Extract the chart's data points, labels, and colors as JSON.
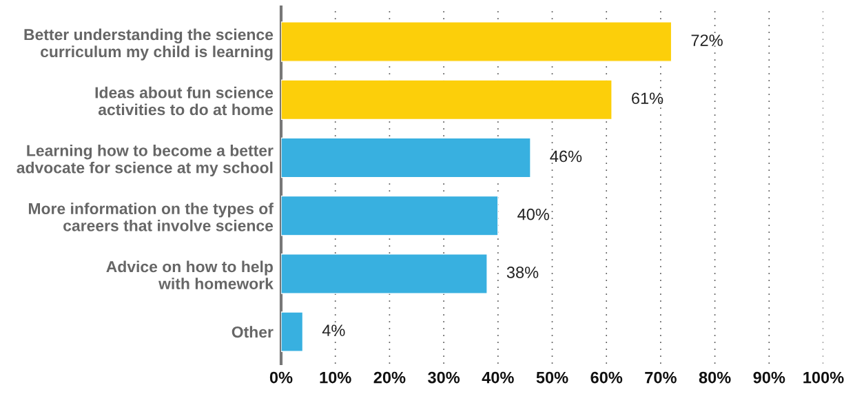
{
  "chart_data": {
    "type": "bar",
    "orientation": "horizontal",
    "categories": [
      "Better understanding the science\ncurriculum my child is learning",
      "Ideas about fun science\nactivities to do at home",
      "Learning how to become a better\nadvocate for science at my school",
      "More information on the types of\ncareers that involve science",
      "Advice on how to help\nwith homework",
      "Other"
    ],
    "values": [
      72,
      61,
      46,
      40,
      38,
      4
    ],
    "colors": [
      "#fccf0a",
      "#fccf0a",
      "#38b0e0",
      "#38b0e0",
      "#38b0e0",
      "#38b0e0"
    ],
    "value_labels": [
      "72%",
      "61%",
      "46%",
      "40%",
      "38%",
      "4%"
    ],
    "xlim": [
      0,
      100
    ],
    "xticks": [
      {
        "value": 0,
        "label": "0%"
      },
      {
        "value": 10,
        "label": "10%"
      },
      {
        "value": 20,
        "label": "20%"
      },
      {
        "value": 30,
        "label": "30%"
      },
      {
        "value": 40,
        "label": "40%"
      },
      {
        "value": 50,
        "label": "50%"
      },
      {
        "value": 60,
        "label": "60%"
      },
      {
        "value": 70,
        "label": "70%"
      },
      {
        "value": 80,
        "label": "80%"
      },
      {
        "value": 90,
        "label": "90%"
      },
      {
        "value": 100,
        "label": "100%"
      }
    ],
    "grid": "x",
    "legend": false
  }
}
